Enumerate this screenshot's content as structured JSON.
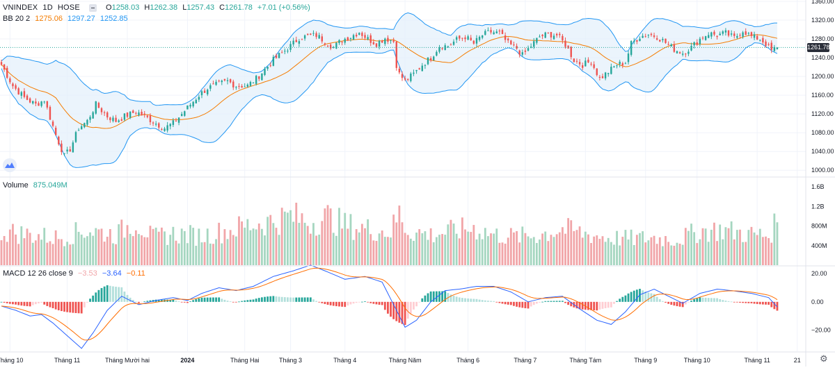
{
  "header": {
    "symbol": "VNINDEX",
    "interval": "1D",
    "exchange": "HOSE",
    "o_label": "O",
    "o_value": "1258.03",
    "h_label": "H",
    "h_value": "1262.38",
    "l_label": "L",
    "l_value": "1257.43",
    "c_label": "C",
    "c_value": "1261.78",
    "change": "+7.01 (+0.56%)"
  },
  "bb_legend": {
    "name": "BB 20 2",
    "basis": "1275.06",
    "upper": "1297.27",
    "lower": "1252.85"
  },
  "volume_legend": {
    "name": "Volume",
    "value": "875.049M"
  },
  "macd_legend": {
    "name": "MACD 12 26 close 9",
    "hist": "−3.53",
    "macd": "−3.64",
    "signal": "−0.11"
  },
  "last_price_label": "1261.78",
  "colors": {
    "up": "#26a69a",
    "down": "#ef5350",
    "vol_up": "#a5d6c0",
    "vol_down": "#f1a5a8",
    "bb_band": "#2196f3",
    "bb_basis": "#f57c00",
    "bb_fill": "#e3f0fb",
    "macd_line": "#2962ff",
    "signal_line": "#ff6d00"
  },
  "chart_data": [
    {
      "type": "candlestick",
      "title": "VNINDEX 1D HOSE",
      "ylim": [
        990,
        1360
      ],
      "y_ticks": [
        "1360.00",
        "1320.00",
        "1280.00",
        "1240.00",
        "1200.00",
        "1160.00",
        "1120.00",
        "1080.00",
        "1040.00",
        "1000.00"
      ],
      "x_labels": [
        "Tháng 10",
        "Tháng 11",
        "Tháng Mười hai",
        "2024",
        "Tháng Hai",
        "Tháng 3",
        "Tháng 4",
        "Tháng Năm",
        "Tháng 6",
        "Tháng 7",
        "Tháng Tám",
        "Tháng 9",
        "Tháng 10",
        "Tháng 11",
        "21"
      ],
      "x_label_index": [
        3,
        23,
        44,
        65,
        85,
        101,
        120,
        141,
        163,
        183,
        204,
        225,
        243,
        264,
        278
      ],
      "close_anchors": [
        [
          0,
          1225
        ],
        [
          4,
          1180
        ],
        [
          8,
          1155
        ],
        [
          12,
          1140
        ],
        [
          15,
          1150
        ],
        [
          19,
          1075
        ],
        [
          22,
          1030
        ],
        [
          24,
          1045
        ],
        [
          27,
          1090
        ],
        [
          30,
          1105
        ],
        [
          33,
          1140
        ],
        [
          37,
          1115
        ],
        [
          40,
          1105
        ],
        [
          43,
          1115
        ],
        [
          47,
          1125
        ],
        [
          50,
          1115
        ],
        [
          54,
          1100
        ],
        [
          57,
          1090
        ],
        [
          60,
          1100
        ],
        [
          63,
          1120
        ],
        [
          66,
          1140
        ],
        [
          69,
          1160
        ],
        [
          72,
          1175
        ],
        [
          75,
          1182
        ],
        [
          79,
          1190
        ],
        [
          82,
          1180
        ],
        [
          86,
          1180
        ],
        [
          89,
          1195
        ],
        [
          92,
          1215
        ],
        [
          95,
          1235
        ],
        [
          98,
          1250
        ],
        [
          101,
          1265
        ],
        [
          104,
          1282
        ],
        [
          107,
          1286
        ],
        [
          110,
          1288
        ],
        [
          113,
          1275
        ],
        [
          116,
          1262
        ],
        [
          119,
          1278
        ],
        [
          122,
          1285
        ],
        [
          125,
          1295
        ],
        [
          128,
          1280
        ],
        [
          131,
          1270
        ],
        [
          134,
          1282
        ],
        [
          137,
          1275
        ],
        [
          138,
          1225
        ],
        [
          139,
          1205
        ],
        [
          141,
          1190
        ],
        [
          144,
          1205
        ],
        [
          147,
          1225
        ],
        [
          150,
          1240
        ],
        [
          153,
          1265
        ],
        [
          156,
          1265
        ],
        [
          159,
          1278
        ],
        [
          162,
          1285
        ],
        [
          165,
          1270
        ],
        [
          168,
          1288
        ],
        [
          171,
          1295
        ],
        [
          174,
          1292
        ],
        [
          177,
          1270
        ],
        [
          180,
          1260
        ],
        [
          182,
          1245
        ],
        [
          185,
          1265
        ],
        [
          188,
          1285
        ],
        [
          191,
          1290
        ],
        [
          194,
          1288
        ],
        [
          197,
          1268
        ],
        [
          200,
          1235
        ],
        [
          203,
          1225
        ],
        [
          206,
          1232
        ],
        [
          209,
          1195
        ],
        [
          212,
          1210
        ],
        [
          215,
          1225
        ],
        [
          218,
          1230
        ],
        [
          220,
          1270
        ],
        [
          223,
          1285
        ],
        [
          226,
          1290
        ],
        [
          229,
          1285
        ],
        [
          232,
          1272
        ],
        [
          235,
          1258
        ],
        [
          238,
          1250
        ],
        [
          241,
          1262
        ],
        [
          244,
          1280
        ],
        [
          247,
          1292
        ],
        [
          250,
          1288
        ],
        [
          253,
          1292
        ],
        [
          256,
          1282
        ],
        [
          259,
          1298
        ],
        [
          262,
          1285
        ],
        [
          265,
          1280
        ],
        [
          267,
          1270
        ],
        [
          269,
          1255
        ],
        [
          271,
          1261.78
        ]
      ],
      "volume_ylim": [
        0,
        1700
      ],
      "volume_ticks": [
        "1.6B",
        "1.2B",
        "800M",
        "400M"
      ],
      "volume_anchors": [
        [
          0,
          700
        ],
        [
          10,
          620
        ],
        [
          20,
          560
        ],
        [
          30,
          720
        ],
        [
          40,
          620
        ],
        [
          47,
          900
        ],
        [
          53,
          560
        ],
        [
          60,
          640
        ],
        [
          70,
          600
        ],
        [
          80,
          720
        ],
        [
          88,
          840
        ],
        [
          95,
          900
        ],
        [
          101,
          1000
        ],
        [
          108,
          880
        ],
        [
          114,
          980
        ],
        [
          120,
          820
        ],
        [
          128,
          740
        ],
        [
          136,
          680
        ],
        [
          139,
          1050
        ],
        [
          142,
          700
        ],
        [
          150,
          620
        ],
        [
          158,
          700
        ],
        [
          165,
          760
        ],
        [
          172,
          620
        ],
        [
          180,
          580
        ],
        [
          188,
          620
        ],
        [
          196,
          740
        ],
        [
          204,
          640
        ],
        [
          212,
          560
        ],
        [
          220,
          540
        ],
        [
          228,
          560
        ],
        [
          236,
          520
        ],
        [
          244,
          700
        ],
        [
          252,
          720
        ],
        [
          260,
          640
        ],
        [
          268,
          600
        ],
        [
          271,
          875
        ]
      ],
      "macd_ylim": [
        -35,
        25
      ],
      "macd_ticks": [
        "20.00",
        "0.00",
        "−20.00"
      ],
      "macd_anchors": [
        [
          0,
          -3
        ],
        [
          5,
          -6
        ],
        [
          10,
          -10
        ],
        [
          14,
          -9
        ],
        [
          18,
          -15
        ],
        [
          23,
          -24
        ],
        [
          28,
          -33
        ],
        [
          32,
          -22
        ],
        [
          37,
          -6
        ],
        [
          42,
          4
        ],
        [
          48,
          -2
        ],
        [
          54,
          1
        ],
        [
          60,
          3
        ],
        [
          65,
          1
        ],
        [
          70,
          6
        ],
        [
          76,
          10
        ],
        [
          82,
          8
        ],
        [
          88,
          11
        ],
        [
          95,
          18
        ],
        [
          102,
          22
        ],
        [
          108,
          26
        ],
        [
          113,
          22
        ],
        [
          120,
          16
        ],
        [
          127,
          18
        ],
        [
          133,
          14
        ],
        [
          137,
          -2
        ],
        [
          141,
          -18
        ],
        [
          145,
          -13
        ],
        [
          150,
          0
        ],
        [
          155,
          8
        ],
        [
          160,
          9
        ],
        [
          166,
          11
        ],
        [
          172,
          11
        ],
        [
          178,
          7
        ],
        [
          184,
          0
        ],
        [
          190,
          3
        ],
        [
          196,
          4
        ],
        [
          202,
          -5
        ],
        [
          208,
          -13
        ],
        [
          213,
          -16
        ],
        [
          218,
          -7
        ],
        [
          223,
          5
        ],
        [
          228,
          9
        ],
        [
          232,
          5
        ],
        [
          238,
          -1
        ],
        [
          244,
          6
        ],
        [
          250,
          9
        ],
        [
          255,
          8
        ],
        [
          262,
          6
        ],
        [
          268,
          3
        ],
        [
          271,
          -3.64
        ]
      ],
      "last_price": 1261.78
    }
  ]
}
